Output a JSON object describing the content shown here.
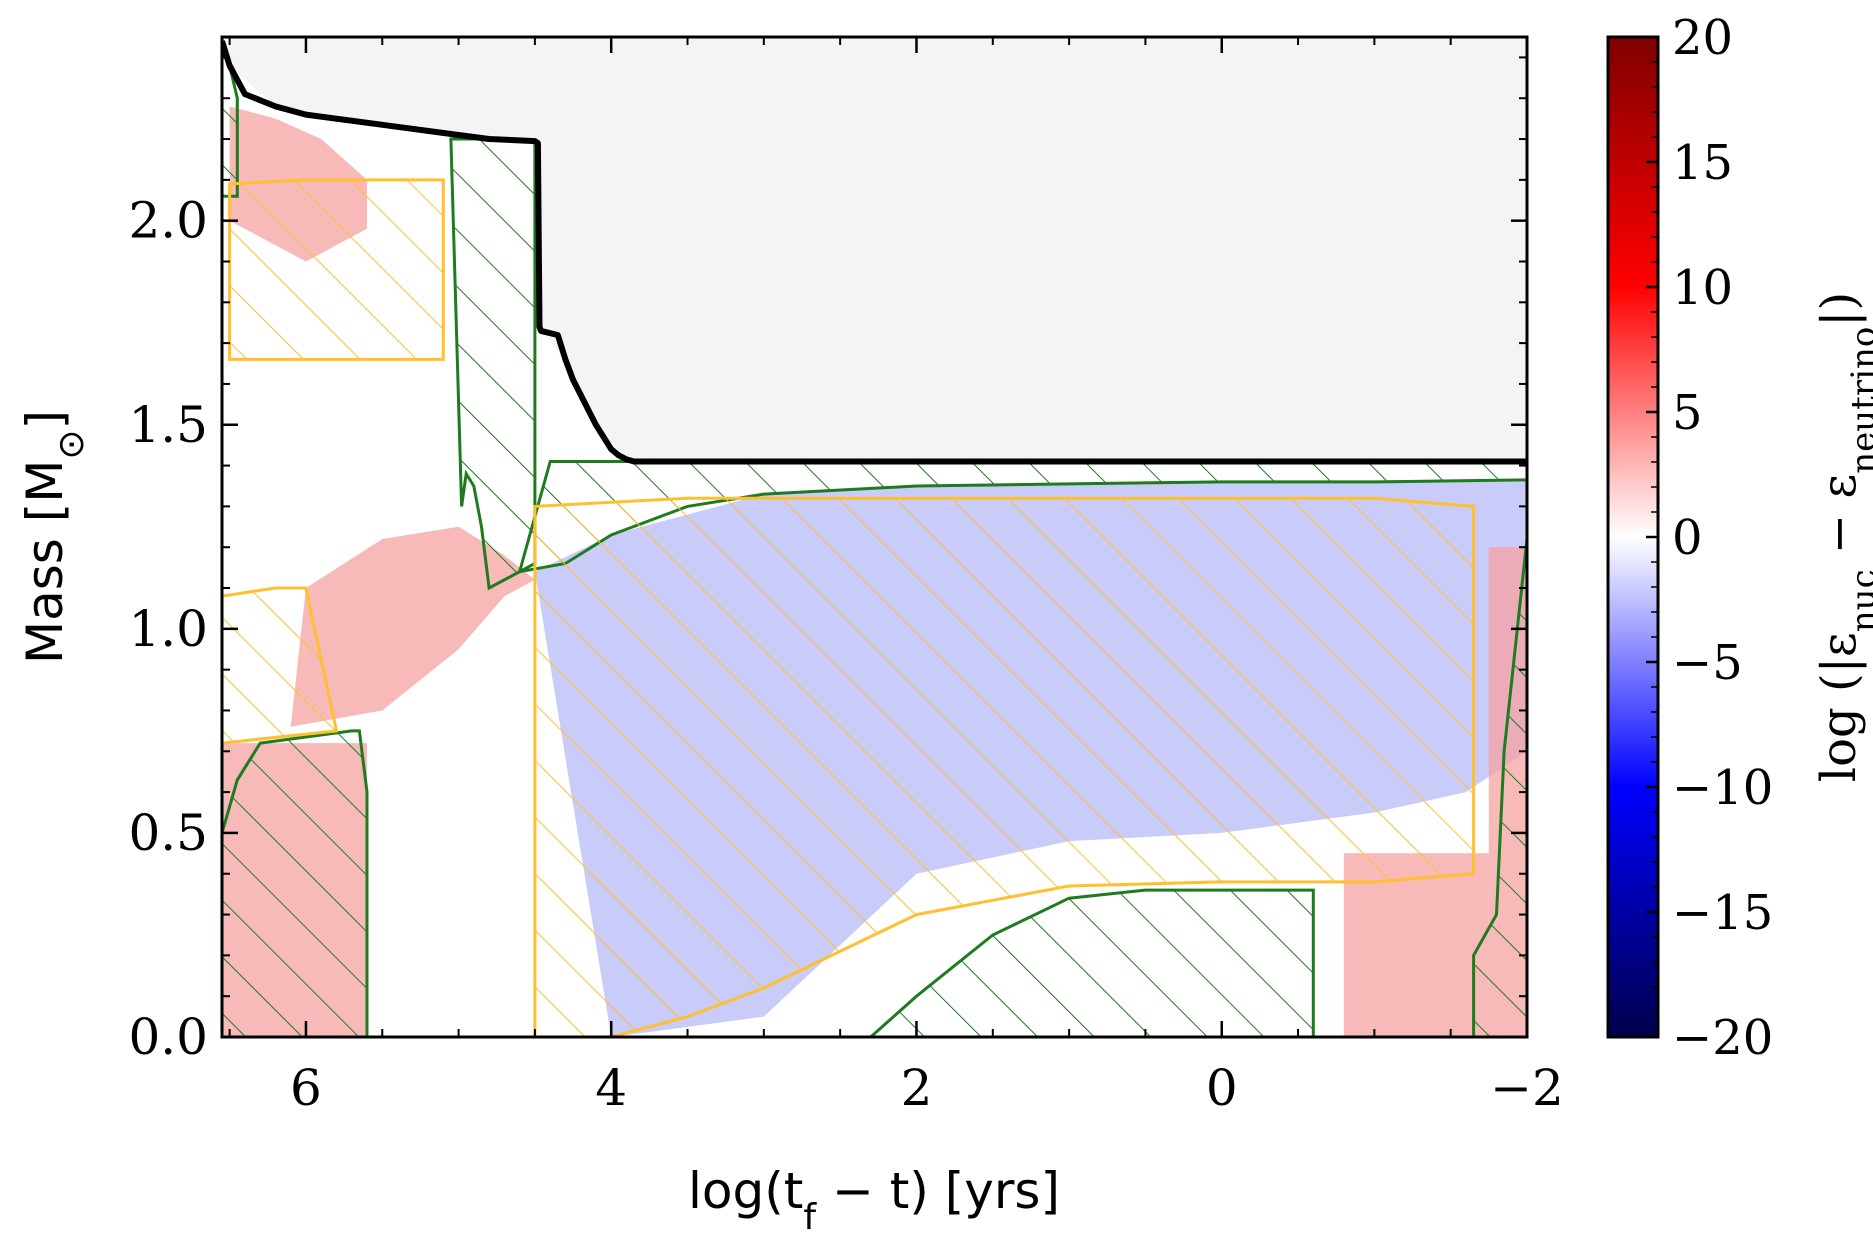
{
  "chart_data": {
    "type": "heatmap",
    "title": "",
    "xlabel": {
      "pre": "log(t",
      "sub": "f",
      "post": " − t)  [yrs]"
    },
    "ylabel": {
      "pre": "Mass [M",
      "sub": "⊙",
      "post": "]"
    },
    "xlim": [
      6.55,
      -2.0
    ],
    "ylim": [
      0.0,
      2.45
    ],
    "x_ticks": [
      6,
      4,
      2,
      0,
      -2
    ],
    "x_tick_labels": [
      "6",
      "4",
      "2",
      "0",
      "−2"
    ],
    "y_ticks": [
      0.0,
      0.5,
      1.0,
      1.5,
      2.0
    ],
    "y_tick_labels": [
      "0.0",
      "0.5",
      "1.0",
      "1.5",
      "2.0"
    ],
    "colorbar": {
      "label": {
        "pre": "log (|ε",
        "sub1": "nuc",
        "mid": " − ε",
        "sub2": "neutrino",
        "post": "|)"
      },
      "range": [
        -20,
        20
      ],
      "ticks": [
        20,
        15,
        10,
        5,
        0,
        -5,
        -10,
        -15,
        -20
      ],
      "tick_labels": [
        "20",
        "15",
        "10",
        "5",
        "0",
        "−5",
        "−10",
        "−15",
        "−20"
      ],
      "colormap": "seismic"
    },
    "colors": {
      "total_mass_line": "#000000",
      "convective_outline": "#1e7b1e",
      "overshoot_outline": "#ffbf2f",
      "beyond_star": "#f4f4f4",
      "neutrino_loss": "#b7b9f5",
      "burning": "#f6a2a2"
    },
    "total_mass": {
      "x": [
        6.55,
        6.5,
        6.4,
        6.2,
        6.0,
        5.5,
        5.0,
        4.8,
        4.5,
        4.48,
        4.47,
        4.46,
        4.35,
        4.3,
        4.25,
        4.1,
        4.0,
        3.95,
        3.9,
        3.85,
        3.5,
        3.0,
        2.0,
        0.0,
        -1.0,
        -2.0
      ],
      "y": [
        2.44,
        2.38,
        2.31,
        2.28,
        2.26,
        2.235,
        2.21,
        2.2,
        2.195,
        2.19,
        1.74,
        1.73,
        1.72,
        1.66,
        1.61,
        1.5,
        1.44,
        1.425,
        1.415,
        1.41,
        1.41,
        1.41,
        1.41,
        1.41,
        1.41,
        1.41
      ]
    },
    "regions": [
      {
        "kind": "convective",
        "x": [
          6.55,
          6.55,
          6.5,
          6.45,
          6.45,
          6.45
        ],
        "y": [
          2.06,
          2.44,
          2.38,
          2.3,
          2.06,
          2.06
        ]
      },
      {
        "kind": "convective",
        "x": [
          5.05,
          4.8,
          4.5,
          4.5,
          4.6,
          4.8,
          4.85,
          4.9,
          4.95,
          4.98,
          5.05
        ],
        "y": [
          2.2,
          2.2,
          2.195,
          1.16,
          1.14,
          1.1,
          1.25,
          1.35,
          1.38,
          1.3,
          2.2
        ]
      },
      {
        "kind": "convective",
        "x": [
          4.6,
          4.3,
          4.0,
          3.5,
          3.0,
          2.0,
          1.0,
          0.0,
          -1.0,
          -2.0,
          -2.0,
          -1.0,
          0.0,
          1.0,
          2.0,
          3.0,
          3.5,
          4.0,
          4.2,
          4.4,
          4.6
        ],
        "y": [
          1.14,
          1.16,
          1.23,
          1.3,
          1.33,
          1.35,
          1.355,
          1.36,
          1.36,
          1.365,
          1.41,
          1.41,
          1.41,
          1.41,
          1.41,
          1.41,
          1.41,
          1.41,
          1.41,
          1.41,
          1.14
        ]
      },
      {
        "kind": "convective",
        "x": [
          6.55,
          6.55,
          6.45,
          6.3,
          5.7,
          5.7,
          5.65,
          5.6,
          5.6
        ],
        "y": [
          0.0,
          0.5,
          0.63,
          0.72,
          0.75,
          0.75,
          0.75,
          0.6,
          0.0
        ]
      },
      {
        "kind": "convective",
        "x": [
          -1.65,
          -1.65,
          -1.8,
          -1.85,
          -2.0,
          -2.0,
          -1.4,
          -1.0,
          -0.6,
          -0.6
        ],
        "y": [
          0.0,
          0.2,
          0.3,
          0.7,
          1.22,
          0.0,
          0.0,
          0.0,
          0.0,
          0.0
        ]
      },
      {
        "kind": "convective",
        "x": [
          2.0,
          1.5,
          1.0,
          0.5,
          0.0,
          -0.6,
          -0.6,
          0.0,
          0.5,
          1.0,
          1.5,
          2.0,
          2.3
        ],
        "y": [
          0.1,
          0.25,
          0.34,
          0.36,
          0.36,
          0.36,
          0.0,
          0.0,
          0.0,
          0.0,
          0.0,
          0.0,
          0.0
        ]
      },
      {
        "kind": "overshoot",
        "x": [
          6.5,
          6.5,
          6.0,
          5.1,
          5.1,
          6.0,
          6.5
        ],
        "y": [
          1.66,
          2.09,
          2.1,
          2.1,
          1.66,
          1.66,
          1.66
        ]
      },
      {
        "kind": "overshoot",
        "x": [
          6.55,
          6.55,
          6.2,
          6.0,
          5.8,
          6.55
        ],
        "y": [
          0.72,
          1.08,
          1.1,
          1.1,
          0.75,
          0.72
        ]
      },
      {
        "kind": "overshoot",
        "x": [
          4.5,
          4.5,
          4.0,
          3.5,
          3.0,
          2.0,
          1.0,
          0.0,
          -1.0,
          -1.65,
          -1.65,
          -1.0,
          0.0,
          1.0,
          2.0,
          3.0,
          3.5,
          4.0
        ],
        "y": [
          0.0,
          1.3,
          1.31,
          1.32,
          1.32,
          1.32,
          1.32,
          1.32,
          1.32,
          1.3,
          0.4,
          0.38,
          0.38,
          0.37,
          0.3,
          0.12,
          0.05,
          0.0
        ]
      }
    ],
    "color_fields": [
      {
        "kind": "beyond_star",
        "x": [
          6.55,
          6.5,
          6.2,
          5.5,
          4.5,
          4.46,
          4.3,
          4.1,
          3.9,
          3.85,
          -2.0,
          -2.0,
          6.55
        ],
        "y": [
          2.44,
          2.38,
          2.28,
          2.235,
          2.195,
          1.73,
          1.66,
          1.5,
          1.415,
          1.41,
          1.41,
          2.45,
          2.45
        ]
      },
      {
        "kind": "neutrino_loss",
        "x": [
          4.5,
          4.0,
          3.0,
          2.0,
          0.0,
          -1.0,
          -2.0,
          -2.0,
          -1.6,
          -1.0,
          0.0,
          1.0,
          2.0,
          3.0,
          4.0
        ],
        "y": [
          1.14,
          1.23,
          1.33,
          1.35,
          1.36,
          1.36,
          1.365,
          0.7,
          0.6,
          0.55,
          0.5,
          0.48,
          0.4,
          0.05,
          0.0
        ]
      },
      {
        "kind": "burning",
        "x": [
          6.5,
          6.2,
          5.9,
          5.6,
          5.6,
          6.0,
          6.5
        ],
        "y": [
          2.28,
          2.25,
          2.2,
          2.1,
          1.98,
          1.9,
          2.0
        ]
      },
      {
        "kind": "burning",
        "x": [
          6.1,
          5.5,
          5.0,
          4.7,
          4.5,
          4.7,
          5.0,
          5.5,
          6.0,
          6.1
        ],
        "y": [
          0.76,
          0.8,
          0.95,
          1.08,
          1.12,
          1.18,
          1.25,
          1.22,
          1.1,
          0.76
        ]
      },
      {
        "kind": "burning",
        "x": [
          6.55,
          5.6,
          5.6,
          6.55
        ],
        "y": [
          0.0,
          0.0,
          0.72,
          0.72
        ]
      },
      {
        "kind": "burning",
        "x": [
          -1.75,
          -2.0,
          -2.0,
          -1.75
        ],
        "y": [
          0.0,
          0.0,
          1.2,
          1.2
        ]
      },
      {
        "kind": "burning",
        "x": [
          -0.8,
          -1.75,
          -1.75,
          -0.8
        ],
        "y": [
          0.0,
          0.0,
          0.45,
          0.45
        ]
      }
    ]
  }
}
